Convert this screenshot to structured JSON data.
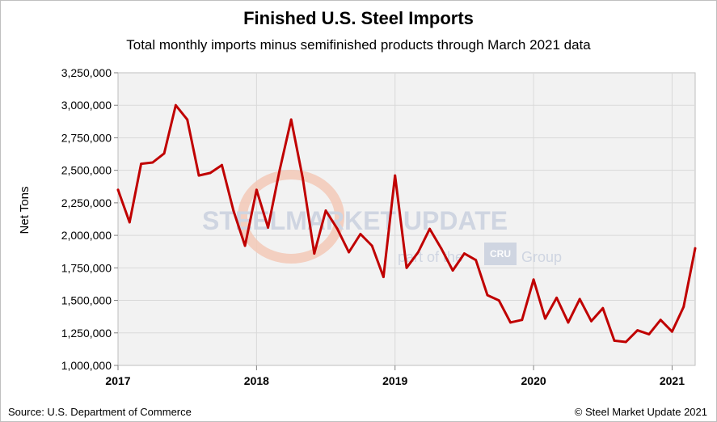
{
  "chart_data": {
    "type": "line",
    "title": "Finished U.S. Steel Imports",
    "subtitle": "Total monthly imports minus semifinished products through March 2021 data",
    "ylabel": "Net Tons",
    "xlabel": "",
    "ylim": [
      1000000,
      3250000
    ],
    "ytick_labels": [
      "1,000,000",
      "1,250,000",
      "1,500,000",
      "1,750,000",
      "2,000,000",
      "2,250,000",
      "2,500,000",
      "2,750,000",
      "3,000,000",
      "3,250,000"
    ],
    "ytick_values": [
      1000000,
      1250000,
      1500000,
      1750000,
      2000000,
      2250000,
      2500000,
      2750000,
      3000000,
      3250000
    ],
    "xtick_labels": [
      "2017",
      "2018",
      "2019",
      "2020",
      "2021"
    ],
    "grid": true,
    "series": [
      {
        "color": "#c00000",
        "x": [
          "2017-01",
          "2017-02",
          "2017-03",
          "2017-04",
          "2017-05",
          "2017-06",
          "2017-07",
          "2017-08",
          "2017-09",
          "2017-10",
          "2017-11",
          "2017-12",
          "2018-01",
          "2018-02",
          "2018-03",
          "2018-04",
          "2018-05",
          "2018-06",
          "2018-07",
          "2018-08",
          "2018-09",
          "2018-10",
          "2018-11",
          "2018-12",
          "2019-01",
          "2019-02",
          "2019-03",
          "2019-04",
          "2019-05",
          "2019-06",
          "2019-07",
          "2019-08",
          "2019-09",
          "2019-10",
          "2019-11",
          "2019-12",
          "2020-01",
          "2020-02",
          "2020-03",
          "2020-04",
          "2020-05",
          "2020-06",
          "2020-07",
          "2020-08",
          "2020-09",
          "2020-10",
          "2020-11",
          "2020-12",
          "2021-01",
          "2021-02",
          "2021-03"
        ],
        "values": [
          2350000,
          2100000,
          2550000,
          2560000,
          2630000,
          3000000,
          2890000,
          2460000,
          2480000,
          2540000,
          2190000,
          1920000,
          2350000,
          2060000,
          2500000,
          2890000,
          2440000,
          1860000,
          2190000,
          2050000,
          1870000,
          2010000,
          1920000,
          1680000,
          2460000,
          1750000,
          1870000,
          2050000,
          1900000,
          1730000,
          1860000,
          1810000,
          1540000,
          1500000,
          1330000,
          1350000,
          1660000,
          1360000,
          1520000,
          1330000,
          1510000,
          1340000,
          1440000,
          1190000,
          1180000,
          1270000,
          1240000,
          1350000,
          1260000,
          1450000,
          1900000
        ]
      }
    ]
  },
  "watermark": {
    "brand": "STEELMARKET UPDATE",
    "tagline": "part of the",
    "partner": "CRU",
    "group": "Group"
  },
  "footer": {
    "source": "Source: U.S. Department of Commerce",
    "copyright": "© Steel Market Update 2021"
  }
}
